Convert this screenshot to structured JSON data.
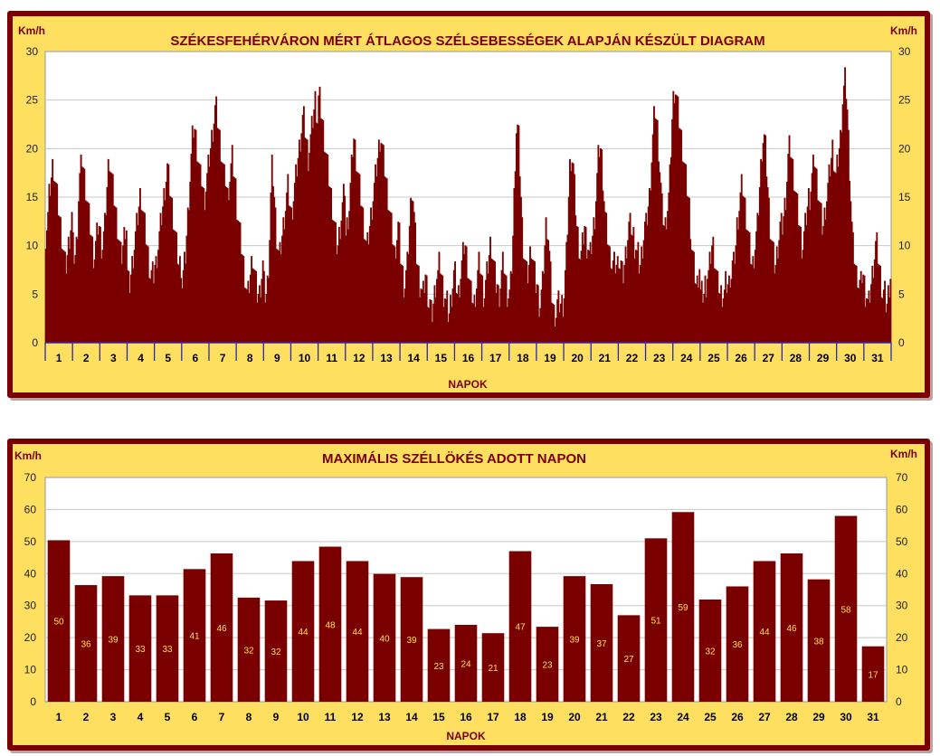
{
  "chart_data": [
    {
      "type": "area",
      "title": "SZÉKESFEHÉRVÁRON MÉRT ÁTLAGOS SZÉLSEBESSÉGEK ALAPJÁN KÉSZÜLT DIAGRAM",
      "ylabel_left": "Km/h",
      "ylabel_right": "Km/h",
      "xlabel": "NAPOK",
      "ylim": [
        0,
        30
      ],
      "yticks": [
        0,
        5,
        10,
        15,
        20,
        25,
        30
      ],
      "categories": [
        "1",
        "2",
        "3",
        "4",
        "5",
        "6",
        "7",
        "8",
        "9",
        "10",
        "11",
        "12",
        "13",
        "14",
        "15",
        "16",
        "17",
        "18",
        "19",
        "20",
        "21",
        "22",
        "23",
        "24",
        "25",
        "26",
        "27",
        "28",
        "29",
        "30",
        "31"
      ],
      "samples_per_day": 24,
      "daily_profile": [
        [
          11,
          12,
          13,
          15,
          16,
          17,
          18,
          18,
          17,
          16,
          15,
          14,
          13,
          12,
          11,
          10,
          9,
          8,
          8,
          9,
          10,
          11,
          12,
          13
        ],
        [
          10,
          9,
          9,
          10,
          12,
          15,
          17,
          18,
          19,
          18,
          17,
          16,
          15,
          14,
          13,
          12,
          11,
          10,
          9,
          9,
          10,
          11,
          12,
          12
        ],
        [
          11,
          10,
          10,
          11,
          12,
          14,
          16,
          18,
          19,
          18,
          17,
          16,
          15,
          14,
          13,
          12,
          11,
          10,
          9,
          9,
          10,
          11,
          12,
          12
        ],
        [
          7,
          6,
          6,
          7,
          8,
          9,
          10,
          11,
          12,
          13,
          14,
          15,
          15,
          14,
          13,
          12,
          11,
          10,
          9,
          8,
          7,
          7,
          7,
          7
        ],
        [
          8,
          8,
          9,
          10,
          11,
          12,
          13,
          14,
          15,
          16,
          17,
          18,
          17,
          16,
          15,
          14,
          13,
          12,
          11,
          10,
          9,
          8,
          8,
          8
        ],
        [
          6,
          7,
          8,
          9,
          11,
          13,
          15,
          17,
          19,
          21,
          22,
          22,
          21,
          20,
          19,
          18,
          17,
          17,
          16,
          15,
          15,
          16,
          17,
          18
        ],
        [
          19,
          20,
          21,
          22,
          23,
          24,
          24,
          23,
          22,
          21,
          20,
          19,
          18,
          17,
          17,
          16,
          15,
          16,
          17,
          18,
          19,
          18,
          17,
          16
        ],
        [
          14,
          13,
          12,
          11,
          10,
          9,
          8,
          7,
          6,
          5,
          5,
          6,
          7,
          8,
          9,
          8,
          7,
          6,
          5,
          5,
          5,
          6,
          7,
          8
        ],
        [
          6,
          5,
          5,
          6,
          8,
          11,
          15,
          18,
          17,
          15,
          13,
          11,
          10,
          9,
          9,
          10,
          11,
          12,
          13,
          14,
          15,
          16,
          15,
          14
        ],
        [
          13,
          14,
          15,
          16,
          17,
          18,
          19,
          20,
          21,
          22,
          23,
          23,
          22,
          21,
          20,
          19,
          20,
          21,
          22,
          23,
          24,
          25,
          24,
          23
        ],
        [
          25,
          25,
          24,
          23,
          22,
          21,
          20,
          19,
          18,
          17,
          16,
          15,
          14,
          13,
          12,
          11,
          10,
          10,
          11,
          12,
          13,
          14,
          15,
          16
        ],
        [
          11,
          12,
          13,
          14,
          16,
          18,
          20,
          21,
          20,
          19,
          18,
          17,
          16,
          15,
          14,
          13,
          12,
          11,
          10,
          10,
          11,
          12,
          13,
          14
        ],
        [
          15,
          16,
          17,
          18,
          19,
          20,
          21,
          21,
          20,
          19,
          18,
          17,
          16,
          15,
          14,
          13,
          12,
          11,
          10,
          9,
          10,
          11,
          12,
          11
        ],
        [
          9,
          8,
          7,
          6,
          6,
          7,
          8,
          10,
          12,
          14,
          16,
          15,
          13,
          11,
          9,
          8,
          7,
          6,
          6,
          5,
          5,
          6,
          7,
          6
        ],
        [
          5,
          4,
          4,
          3,
          3,
          4,
          5,
          6,
          7,
          7,
          8,
          8,
          7,
          6,
          5,
          5,
          4,
          4,
          3,
          3,
          4,
          5,
          6,
          7
        ],
        [
          7,
          6,
          5,
          5,
          6,
          7,
          8,
          9,
          10,
          10,
          9,
          8,
          7,
          6,
          5,
          5,
          4,
          4,
          5,
          6,
          7,
          8,
          8,
          7
        ],
        [
          6,
          5,
          5,
          6,
          7,
          8,
          9,
          10,
          10,
          9,
          8,
          7,
          6,
          6,
          5,
          5,
          6,
          7,
          8,
          8,
          7,
          6,
          5,
          5
        ],
        [
          5,
          6,
          8,
          11,
          15,
          19,
          22,
          22,
          21,
          18,
          15,
          12,
          10,
          9,
          8,
          7,
          7,
          8,
          9,
          10,
          9,
          8,
          7,
          6
        ],
        [
          6,
          5,
          4,
          4,
          5,
          6,
          8,
          10,
          12,
          12,
          11,
          9,
          7,
          5,
          4,
          3,
          3,
          3,
          4,
          4,
          4,
          4,
          4,
          4
        ],
        [
          5,
          7,
          9,
          12,
          15,
          18,
          19,
          19,
          18,
          16,
          14,
          12,
          11,
          10,
          9,
          9,
          10,
          11,
          12,
          11,
          10,
          10,
          9,
          9
        ],
        [
          10,
          11,
          12,
          13,
          15,
          17,
          19,
          20,
          20,
          19,
          17,
          15,
          13,
          12,
          11,
          10,
          9,
          9,
          8,
          8,
          8,
          8,
          8,
          8
        ],
        [
          9,
          8,
          8,
          7,
          7,
          8,
          9,
          10,
          11,
          12,
          12,
          12,
          11,
          11,
          10,
          10,
          9,
          9,
          8,
          8,
          9,
          10,
          11,
          12
        ],
        [
          12,
          13,
          14,
          15,
          17,
          19,
          21,
          23,
          24,
          23,
          22,
          20,
          18,
          16,
          14,
          13,
          12,
          12,
          13,
          14,
          15,
          17,
          20,
          23
        ],
        [
          25,
          26,
          26,
          25,
          24,
          23,
          22,
          21,
          20,
          19,
          18,
          17,
          16,
          15,
          14,
          12,
          10,
          9,
          8,
          7,
          6,
          6,
          7,
          8
        ],
        [
          5,
          5,
          5,
          5,
          6,
          6,
          7,
          7,
          8,
          9,
          10,
          10,
          9,
          8,
          7,
          6,
          6,
          5,
          5,
          5,
          5,
          5,
          6,
          6
        ],
        [
          6,
          6,
          7,
          7,
          8,
          8,
          9,
          10,
          12,
          13,
          14,
          15,
          16,
          16,
          15,
          14,
          13,
          12,
          11,
          10,
          9,
          8,
          8,
          9
        ],
        [
          10,
          11,
          12,
          14,
          16,
          18,
          20,
          21,
          21,
          20,
          18,
          16,
          14,
          12,
          11,
          10,
          9,
          8,
          8,
          9,
          10,
          11,
          12,
          12
        ],
        [
          12,
          13,
          14,
          15,
          17,
          19,
          20,
          20,
          19,
          18,
          17,
          16,
          15,
          14,
          13,
          12,
          11,
          10,
          10,
          11,
          12,
          13,
          14,
          15
        ],
        [
          15,
          16,
          17,
          18,
          19,
          18,
          17,
          16,
          15,
          14,
          13,
          12,
          12,
          13,
          14,
          15,
          16,
          17,
          18,
          19,
          20,
          19,
          18,
          17
        ],
        [
          18,
          19,
          20,
          21,
          23,
          25,
          26,
          27,
          26,
          24,
          21,
          18,
          15,
          12,
          10,
          9,
          8,
          7,
          7,
          6,
          6,
          6,
          7,
          7
        ],
        [
          6,
          5,
          5,
          4,
          4,
          5,
          6,
          7,
          8,
          9,
          10,
          10,
          9,
          8,
          7,
          6,
          5,
          5,
          5,
          4,
          4,
          5,
          6,
          7
        ]
      ]
    },
    {
      "type": "bar",
      "title": "MAXIMÁLIS SZÉLLÖKÉS ADOTT NAPON",
      "ylabel_left": "Km/h",
      "ylabel_right": "Km/h",
      "xlabel": "NAPOK",
      "ylim": [
        0,
        70
      ],
      "yticks": [
        0,
        10,
        20,
        30,
        40,
        50,
        60,
        70
      ],
      "categories": [
        "1",
        "2",
        "3",
        "4",
        "5",
        "6",
        "7",
        "8",
        "9",
        "10",
        "11",
        "12",
        "13",
        "14",
        "15",
        "16",
        "17",
        "18",
        "19",
        "20",
        "21",
        "22",
        "23",
        "24",
        "25",
        "26",
        "27",
        "28",
        "29",
        "30",
        "31"
      ],
      "values": [
        50.4,
        36.4,
        39.2,
        33.2,
        33.2,
        41.4,
        46.3,
        32.5,
        31.6,
        43.9,
        48.4,
        43.9,
        39.9,
        38.9,
        22.7,
        24.0,
        21.4,
        47.0,
        23.4,
        39.2,
        36.7,
        27.0,
        51.0,
        59.2,
        31.9,
        36.0,
        43.9,
        46.3,
        38.2,
        58.0,
        17.3
      ],
      "data_labels": [
        "50",
        "36",
        "39",
        "33",
        "33",
        "41",
        "46",
        "32",
        "32",
        "44",
        "48",
        "44",
        "40",
        "39",
        "23",
        "24",
        "21",
        "47",
        "23",
        "39",
        "37",
        "27",
        "51",
        "59",
        "32",
        "36",
        "44",
        "46",
        "38",
        "58",
        "17"
      ]
    }
  ]
}
